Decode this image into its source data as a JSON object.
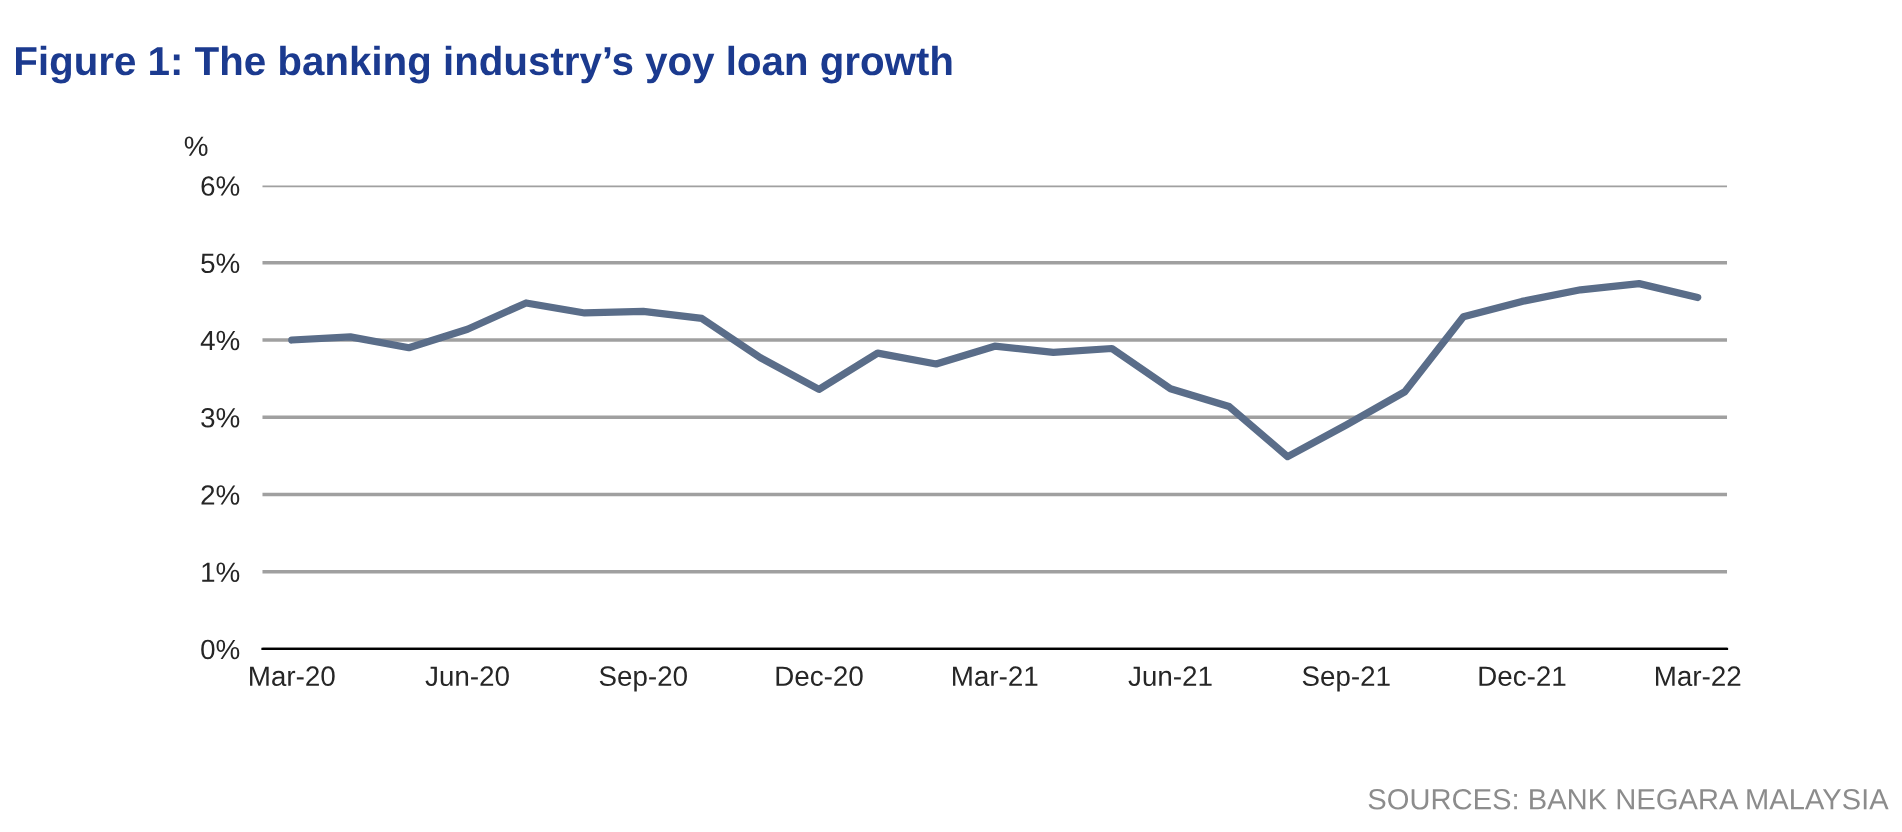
{
  "chart_data": {
    "type": "line",
    "title": "Figure 1: The banking industry’s yoy loan growth",
    "ylabel": "%",
    "categories": [
      "Mar-20",
      null,
      null,
      "Jun-20",
      null,
      null,
      "Sep-20",
      null,
      null,
      "Dec-20",
      null,
      null,
      "Mar-21",
      null,
      null,
      "Jun-21",
      null,
      null,
      "Sep-21",
      null,
      null,
      "Dec-21",
      null,
      null,
      "Mar-22"
    ],
    "series": [
      {
        "color": "#5a6d89",
        "values": [
          4.0,
          4.04,
          3.9,
          4.14,
          4.48,
          4.35,
          4.37,
          4.28,
          3.77,
          3.36,
          3.83,
          3.69,
          3.92,
          3.84,
          3.89,
          3.37,
          3.14,
          2.49,
          2.9,
          3.33,
          4.3,
          4.5,
          4.65,
          4.73,
          4.55
        ]
      }
    ],
    "ylim": [
      0,
      6
    ],
    "yticks": [
      {
        "value": 0,
        "label": "0%"
      },
      {
        "value": 1,
        "label": "1%"
      },
      {
        "value": 2,
        "label": "2%"
      },
      {
        "value": 3,
        "label": "3%"
      },
      {
        "value": 4,
        "label": "4%"
      },
      {
        "value": 5,
        "label": "5%"
      },
      {
        "value": 6,
        "label": "6%"
      }
    ],
    "grid": "y",
    "marker": "none",
    "line_style": "solid",
    "annotations": [
      "SOURCES: BANK NEGARA MALAYSIA"
    ]
  }
}
